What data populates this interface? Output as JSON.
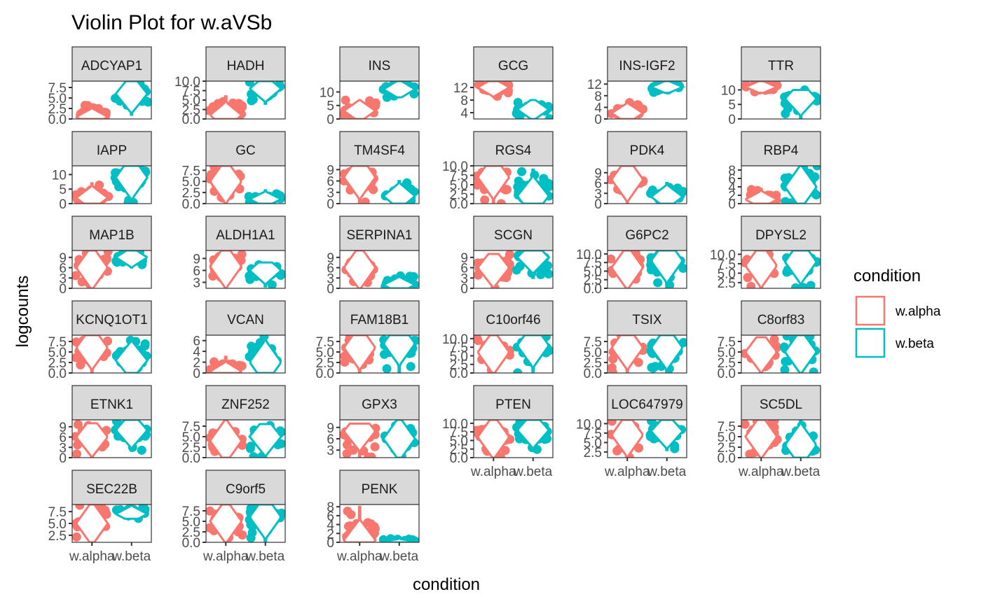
{
  "chart_data": {
    "type": "violin",
    "title": "Violin Plot for w.aVSb",
    "xlabel": "condition",
    "ylabel": "logcounts",
    "categories": [
      "w.alpha",
      "w.beta"
    ],
    "colors": {
      "w.alpha": "#F8766D",
      "w.beta": "#00BFC4"
    },
    "legend": {
      "title": "condition",
      "position": "right",
      "entries": [
        "w.alpha",
        "w.beta"
      ]
    },
    "facet_layout": {
      "ncol": 6,
      "nrow": 6
    },
    "panels": [
      {
        "gene": "ADCYAP1",
        "ylim": [
          0,
          9
        ],
        "yticks": [
          "0.0",
          "2.5",
          "5.0",
          "7.5"
        ],
        "tickvals": [
          0,
          2.5,
          5,
          7.5
        ],
        "groups": {
          "w.alpha": {
            "min": 0,
            "max": 3.5,
            "median": 0.5
          },
          "w.beta": {
            "min": 1,
            "max": 9,
            "median": 6
          }
        }
      },
      {
        "gene": "HADH",
        "ylim": [
          0,
          10
        ],
        "yticks": [
          "0.0",
          "2.5",
          "5.0",
          "7.5",
          "10.0"
        ],
        "tickvals": [
          0,
          2.5,
          5,
          7.5,
          10
        ],
        "groups": {
          "w.alpha": {
            "min": 0,
            "max": 6,
            "median": 1
          },
          "w.beta": {
            "min": 4,
            "max": 10,
            "median": 8
          }
        }
      },
      {
        "gene": "INS",
        "ylim": [
          0,
          14
        ],
        "yticks": [
          "0",
          "5",
          "10"
        ],
        "tickvals": [
          0,
          5,
          10
        ],
        "groups": {
          "w.alpha": {
            "min": 0,
            "max": 7,
            "median": 3
          },
          "w.beta": {
            "min": 8,
            "max": 14,
            "median": 11
          }
        }
      },
      {
        "gene": "GCG",
        "ylim": [
          2,
          14
        ],
        "yticks": [
          "4",
          "8",
          "12"
        ],
        "tickvals": [
          4,
          8,
          12
        ],
        "groups": {
          "w.alpha": {
            "min": 9,
            "max": 14,
            "median": 12
          },
          "w.beta": {
            "min": 2,
            "max": 8,
            "median": 5
          }
        }
      },
      {
        "gene": "INS-IGF2",
        "ylim": [
          0,
          13
        ],
        "yticks": [
          "0",
          "4",
          "8",
          "12"
        ],
        "tickvals": [
          0,
          4,
          8,
          12
        ],
        "groups": {
          "w.alpha": {
            "min": 0,
            "max": 6,
            "median": 2
          },
          "w.beta": {
            "min": 9,
            "max": 13,
            "median": 11
          }
        }
      },
      {
        "gene": "TTR",
        "ylim": [
          0,
          13
        ],
        "yticks": [
          "0",
          "5",
          "10"
        ],
        "tickvals": [
          0,
          5,
          10
        ],
        "groups": {
          "w.alpha": {
            "min": 9,
            "max": 13,
            "median": 11
          },
          "w.beta": {
            "min": 0,
            "max": 10,
            "median": 7
          }
        }
      },
      {
        "gene": "IAPP",
        "ylim": [
          0,
          13
        ],
        "yticks": [
          "0",
          "5",
          "10"
        ],
        "tickvals": [
          0,
          5,
          10
        ],
        "groups": {
          "w.alpha": {
            "min": 0,
            "max": 7,
            "median": 2
          },
          "w.beta": {
            "min": 0,
            "max": 13,
            "median": 9
          }
        }
      },
      {
        "gene": "GC",
        "ylim": [
          0,
          8.5
        ],
        "yticks": [
          "0.0",
          "2.5",
          "5.0",
          "7.5"
        ],
        "tickvals": [
          0,
          2.5,
          5,
          7.5
        ],
        "groups": {
          "w.alpha": {
            "min": 0,
            "max": 8.5,
            "median": 5
          },
          "w.beta": {
            "min": 0,
            "max": 3,
            "median": 1
          }
        }
      },
      {
        "gene": "TM4SF4",
        "ylim": [
          0,
          10
        ],
        "yticks": [
          "0",
          "3",
          "6",
          "9"
        ],
        "tickvals": [
          0,
          3,
          6,
          9
        ],
        "groups": {
          "w.alpha": {
            "min": 0,
            "max": 10,
            "median": 7
          },
          "w.beta": {
            "min": 0,
            "max": 6,
            "median": 2
          }
        }
      },
      {
        "gene": "RGS4",
        "ylim": [
          0,
          10
        ],
        "yticks": [
          "0.0",
          "2.5",
          "5.0",
          "7.5",
          "10.0"
        ],
        "tickvals": [
          0,
          2.5,
          5,
          7.5,
          10
        ],
        "groups": {
          "w.alpha": {
            "min": 0,
            "max": 10,
            "median": 7
          },
          "w.beta": {
            "min": 0,
            "max": 9,
            "median": 2
          }
        }
      },
      {
        "gene": "PDK4",
        "ylim": [
          0,
          11
        ],
        "yticks": [
          "0",
          "3",
          "6",
          "9"
        ],
        "tickvals": [
          0,
          3,
          6,
          9
        ],
        "groups": {
          "w.alpha": {
            "min": 0,
            "max": 11,
            "median": 7
          },
          "w.beta": {
            "min": 0,
            "max": 6,
            "median": 2
          }
        }
      },
      {
        "gene": "RBP4",
        "ylim": [
          0,
          9
        ],
        "yticks": [
          "0",
          "2",
          "4",
          "6",
          "8"
        ],
        "tickvals": [
          0,
          2,
          4,
          6,
          8
        ],
        "groups": {
          "w.alpha": {
            "min": 0,
            "max": 3.5,
            "median": 1
          },
          "w.beta": {
            "min": 0,
            "max": 9,
            "median": 4
          }
        }
      },
      {
        "gene": "MAP1B",
        "ylim": [
          0,
          11
        ],
        "yticks": [
          "0",
          "3",
          "6",
          "9"
        ],
        "tickvals": [
          0,
          3,
          6,
          9
        ],
        "groups": {
          "w.alpha": {
            "min": 0,
            "max": 11,
            "median": 6
          },
          "w.beta": {
            "min": 6,
            "max": 11,
            "median": 9
          }
        }
      },
      {
        "gene": "ALDH1A1",
        "ylim": [
          1.5,
          11
        ],
        "yticks": [
          "3",
          "6",
          "9"
        ],
        "tickvals": [
          3,
          6,
          9
        ],
        "groups": {
          "w.alpha": {
            "min": 1.5,
            "max": 11,
            "median": 7
          },
          "w.beta": {
            "min": 2,
            "max": 8,
            "median": 6
          }
        }
      },
      {
        "gene": "SERPINA1",
        "ylim": [
          0,
          11
        ],
        "yticks": [
          "0",
          "3",
          "6",
          "9"
        ],
        "tickvals": [
          0,
          3,
          6,
          9
        ],
        "groups": {
          "w.alpha": {
            "min": 0,
            "max": 11,
            "median": 6
          },
          "w.beta": {
            "min": 0,
            "max": 4,
            "median": 1
          }
        }
      },
      {
        "gene": "SCGN",
        "ylim": [
          0,
          11
        ],
        "yticks": [
          "0",
          "3",
          "6",
          "9"
        ],
        "tickvals": [
          0,
          3,
          6,
          9
        ],
        "groups": {
          "w.alpha": {
            "min": 0,
            "max": 10,
            "median": 6
          },
          "w.beta": {
            "min": 3,
            "max": 11,
            "median": 9
          }
        }
      },
      {
        "gene": "G6PC2",
        "ylim": [
          0,
          11
        ],
        "yticks": [
          "0.0",
          "2.5",
          "5.0",
          "7.5",
          "10.0"
        ],
        "tickvals": [
          0,
          2.5,
          5,
          7.5,
          10
        ],
        "groups": {
          "w.alpha": {
            "min": 0,
            "max": 11,
            "median": 6
          },
          "w.beta": {
            "min": 0,
            "max": 11,
            "median": 8
          }
        }
      },
      {
        "gene": "DPYSL2",
        "ylim": [
          1,
          11
        ],
        "yticks": [
          "2.5",
          "5.0",
          "7.5",
          "10.0"
        ],
        "tickvals": [
          2.5,
          5,
          7.5,
          10
        ],
        "groups": {
          "w.alpha": {
            "min": 1,
            "max": 11,
            "median": 7
          },
          "w.beta": {
            "min": 1,
            "max": 11,
            "median": 8
          }
        }
      },
      {
        "gene": "KCNQ1OT1",
        "ylim": [
          0,
          9
        ],
        "yticks": [
          "0.0",
          "2.5",
          "5.0",
          "7.5"
        ],
        "tickvals": [
          0,
          2.5,
          5,
          7.5
        ],
        "groups": {
          "w.alpha": {
            "min": 0,
            "max": 9,
            "median": 6
          },
          "w.beta": {
            "min": 0,
            "max": 8,
            "median": 3
          }
        }
      },
      {
        "gene": "VCAN",
        "ylim": [
          0,
          7
        ],
        "yticks": [
          "0",
          "2",
          "4",
          "6"
        ],
        "tickvals": [
          0,
          2,
          4,
          6
        ],
        "groups": {
          "w.alpha": {
            "min": 0,
            "max": 3,
            "median": 0.3
          },
          "w.beta": {
            "min": 0,
            "max": 7,
            "median": 2
          }
        }
      },
      {
        "gene": "FAM18B1",
        "ylim": [
          0,
          9
        ],
        "yticks": [
          "0.0",
          "2.5",
          "5.0",
          "7.5"
        ],
        "tickvals": [
          0,
          2.5,
          5,
          7.5
        ],
        "groups": {
          "w.alpha": {
            "min": 0,
            "max": 9,
            "median": 6
          },
          "w.beta": {
            "min": 0,
            "max": 9,
            "median": 7
          }
        }
      },
      {
        "gene": "C10orf46",
        "ylim": [
          0,
          11
        ],
        "yticks": [
          "0.0",
          "2.5",
          "5.0",
          "7.5",
          "10.0"
        ],
        "tickvals": [
          0,
          2.5,
          5,
          7.5,
          10
        ],
        "groups": {
          "w.alpha": {
            "min": 0,
            "max": 11,
            "median": 6
          },
          "w.beta": {
            "min": 0,
            "max": 11,
            "median": 8
          }
        }
      },
      {
        "gene": "TSIX",
        "ylim": [
          0,
          9
        ],
        "yticks": [
          "0.0",
          "2.5",
          "5.0",
          "7.5"
        ],
        "tickvals": [
          0,
          2.5,
          5,
          7.5
        ],
        "groups": {
          "w.alpha": {
            "min": 0,
            "max": 9,
            "median": 6
          },
          "w.beta": {
            "min": 0,
            "max": 9,
            "median": 6
          }
        }
      },
      {
        "gene": "C8orf83",
        "ylim": [
          0,
          9
        ],
        "yticks": [
          "0.0",
          "2.5",
          "5.0",
          "7.5"
        ],
        "tickvals": [
          0,
          2.5,
          5,
          7.5
        ],
        "groups": {
          "w.alpha": {
            "min": 0,
            "max": 8.5,
            "median": 5
          },
          "w.beta": {
            "min": 0,
            "max": 9,
            "median": 5
          }
        }
      },
      {
        "gene": "ETNK1",
        "ylim": [
          0,
          11
        ],
        "yticks": [
          "0",
          "3",
          "6",
          "9"
        ],
        "tickvals": [
          0,
          3,
          6,
          9
        ],
        "groups": {
          "w.alpha": {
            "min": 0,
            "max": 10,
            "median": 6
          },
          "w.beta": {
            "min": 2,
            "max": 11,
            "median": 8
          }
        }
      },
      {
        "gene": "ZNF252",
        "ylim": [
          0,
          9
        ],
        "yticks": [
          "0.0",
          "2.5",
          "5.0",
          "7.5"
        ],
        "tickvals": [
          0,
          2.5,
          5,
          7.5
        ],
        "groups": {
          "w.alpha": {
            "min": 0,
            "max": 9,
            "median": 4
          },
          "w.beta": {
            "min": 0,
            "max": 8,
            "median": 5
          }
        }
      },
      {
        "gene": "GPX3",
        "ylim": [
          1,
          11
        ],
        "yticks": [
          "3",
          "6",
          "9"
        ],
        "tickvals": [
          3,
          6,
          9
        ],
        "groups": {
          "w.alpha": {
            "min": 1,
            "max": 10,
            "median": 8
          },
          "w.beta": {
            "min": 1,
            "max": 11,
            "median": 6
          }
        }
      },
      {
        "gene": "PTEN",
        "ylim": [
          0,
          11
        ],
        "yticks": [
          "0.0",
          "2.5",
          "5.0",
          "7.5",
          "10.0"
        ],
        "tickvals": [
          0,
          2.5,
          5,
          7.5,
          10
        ],
        "groups": {
          "w.alpha": {
            "min": 0,
            "max": 11,
            "median": 6
          },
          "w.beta": {
            "min": 2,
            "max": 11,
            "median": 8
          }
        }
      },
      {
        "gene": "LOC647979",
        "ylim": [
          1,
          11
        ],
        "yticks": [
          "2.5",
          "5.0",
          "7.5",
          "10.0"
        ],
        "tickvals": [
          2.5,
          5,
          7.5,
          10
        ],
        "groups": {
          "w.alpha": {
            "min": 1,
            "max": 11,
            "median": 7
          },
          "w.beta": {
            "min": 3,
            "max": 11,
            "median": 8
          }
        }
      },
      {
        "gene": "SC5DL",
        "ylim": [
          0,
          9
        ],
        "yticks": [
          "0.0",
          "2.5",
          "5.0",
          "7.5"
        ],
        "tickvals": [
          0,
          2.5,
          5,
          7.5
        ],
        "groups": {
          "w.alpha": {
            "min": 0,
            "max": 9,
            "median": 5
          },
          "w.beta": {
            "min": 0,
            "max": 9,
            "median": 3
          }
        }
      },
      {
        "gene": "SEC22B",
        "ylim": [
          1,
          9
        ],
        "yticks": [
          "2.5",
          "5.0",
          "7.5"
        ],
        "tickvals": [
          2.5,
          5,
          7.5
        ],
        "groups": {
          "w.alpha": {
            "min": 1,
            "max": 9,
            "median": 5
          },
          "w.beta": {
            "min": 6,
            "max": 9,
            "median": 7
          }
        }
      },
      {
        "gene": "C9orf5",
        "ylim": [
          0,
          9
        ],
        "yticks": [
          "0.0",
          "2.5",
          "5.0",
          "7.5"
        ],
        "tickvals": [
          0,
          2.5,
          5,
          7.5
        ],
        "groups": {
          "w.alpha": {
            "min": 0,
            "max": 9,
            "median": 5
          },
          "w.beta": {
            "min": 0,
            "max": 9,
            "median": 6
          }
        }
      },
      {
        "gene": "PENK",
        "ylim": [
          0,
          8.5
        ],
        "yticks": [
          "0",
          "2",
          "4",
          "6",
          "8"
        ],
        "tickvals": [
          0,
          2,
          4,
          6,
          8
        ],
        "groups": {
          "w.alpha": {
            "min": 0,
            "max": 8,
            "median": 0.5
          },
          "w.beta": {
            "min": 0,
            "max": 1,
            "median": 0.2
          }
        }
      }
    ]
  }
}
